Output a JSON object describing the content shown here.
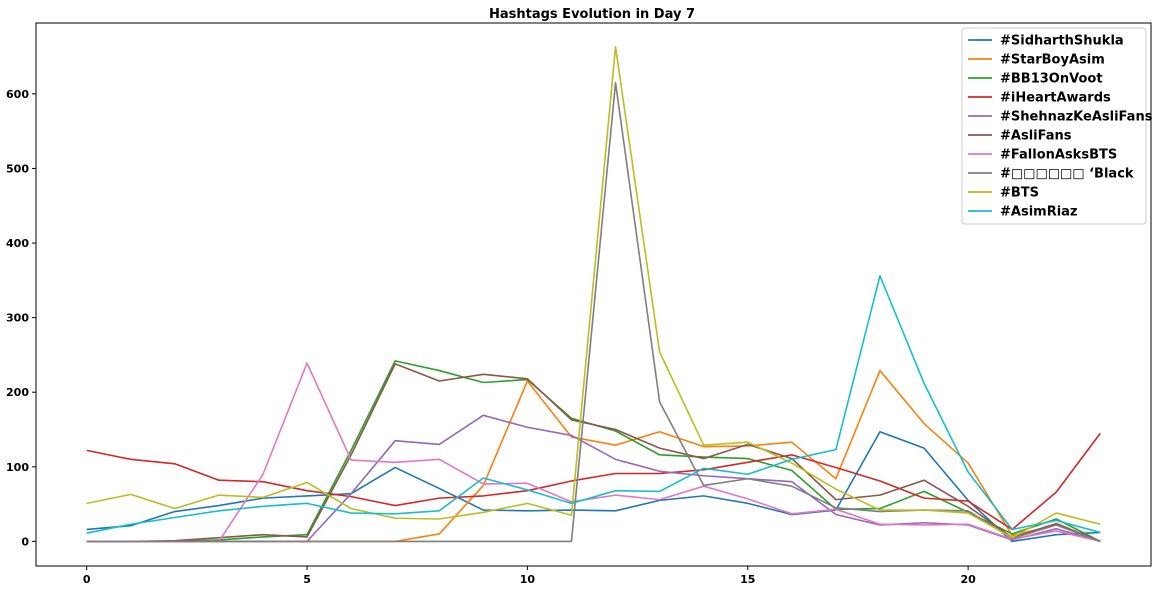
{
  "chart_data": {
    "type": "line",
    "title": "Hashtags Evolution in Day 7",
    "xlabel": "",
    "ylabel": "",
    "xlim": [
      -1.15,
      24.15
    ],
    "ylim": [
      -33,
      695
    ],
    "xticks": [
      0,
      5,
      10,
      15,
      20
    ],
    "yticks": [
      0,
      100,
      200,
      300,
      400,
      500,
      600
    ],
    "grid": false,
    "legend_position": "top-right",
    "x": [
      0,
      1,
      2,
      3,
      4,
      5,
      6,
      7,
      8,
      9,
      10,
      11,
      12,
      13,
      14,
      15,
      16,
      17,
      18,
      19,
      20,
      21,
      22,
      23
    ],
    "series": [
      {
        "name": "#SidharthShukla",
        "color": "#1f77b4",
        "values": [
          16,
          21,
          40,
          48,
          58,
          61,
          64,
          99,
          71,
          42,
          41,
          42,
          41,
          55,
          61,
          51,
          36,
          42,
          147,
          125,
          55,
          0,
          9,
          12
        ]
      },
      {
        "name": "#StarBoyAsim",
        "color": "#ff7f0e",
        "values": [
          0,
          0,
          0,
          0,
          0,
          0,
          0,
          0,
          10,
          75,
          215,
          140,
          129,
          147,
          127,
          128,
          133,
          84,
          229,
          158,
          105,
          8,
          22,
          0
        ]
      },
      {
        "name": "#BB13OnVoot",
        "color": "#2ca02c",
        "values": [
          0,
          0,
          0,
          2,
          6,
          9,
          122,
          242,
          229,
          213,
          217,
          165,
          148,
          116,
          113,
          111,
          95,
          43,
          44,
          67,
          39,
          10,
          30,
          0
        ]
      },
      {
        "name": "#iHeartAwards",
        "color": "#d62728",
        "values": [
          122,
          110,
          104,
          82,
          80,
          68,
          60,
          48,
          58,
          61,
          68,
          81,
          91,
          91,
          96,
          106,
          116,
          99,
          81,
          58,
          54,
          16,
          66,
          145
        ]
      },
      {
        "name": "#ShehnazKeAsliFans",
        "color": "#9467bd",
        "values": [
          0,
          0,
          0,
          0,
          0,
          0,
          64,
          135,
          130,
          169,
          153,
          142,
          110,
          94,
          88,
          84,
          80,
          36,
          22,
          25,
          22,
          2,
          17,
          0
        ]
      },
      {
        "name": "#AsliFans",
        "color": "#8c564b",
        "values": [
          0,
          0,
          1,
          5,
          9,
          6,
          116,
          238,
          215,
          224,
          218,
          163,
          150,
          125,
          111,
          130,
          111,
          56,
          62,
          82,
          47,
          5,
          24,
          0
        ]
      },
      {
        "name": "#FallonAsksBTS",
        "color": "#e377c2",
        "values": [
          0,
          0,
          0,
          0,
          90,
          239,
          109,
          106,
          110,
          77,
          78,
          53,
          62,
          56,
          74,
          57,
          37,
          43,
          23,
          22,
          23,
          3,
          14,
          0
        ]
      },
      {
        "name": "#□□□□□□ ‘Black",
        "color": "#7f7f7f",
        "values": [
          0,
          0,
          0,
          0,
          0,
          0,
          0,
          0,
          0,
          0,
          0,
          0,
          615,
          187,
          75,
          84,
          74,
          45,
          40,
          42,
          41,
          4,
          22,
          0
        ]
      },
      {
        "name": "#BTS",
        "color": "#bcbd22",
        "values": [
          51,
          63,
          44,
          62,
          59,
          79,
          44,
          31,
          30,
          39,
          51,
          35,
          663,
          254,
          129,
          133,
          105,
          70,
          42,
          42,
          38,
          5,
          38,
          23
        ]
      },
      {
        "name": "#AsimRiaz",
        "color": "#17becf",
        "values": [
          11,
          23,
          32,
          41,
          47,
          51,
          38,
          37,
          41,
          85,
          69,
          51,
          68,
          67,
          98,
          90,
          110,
          123,
          356,
          212,
          93,
          16,
          28,
          12
        ]
      }
    ]
  }
}
